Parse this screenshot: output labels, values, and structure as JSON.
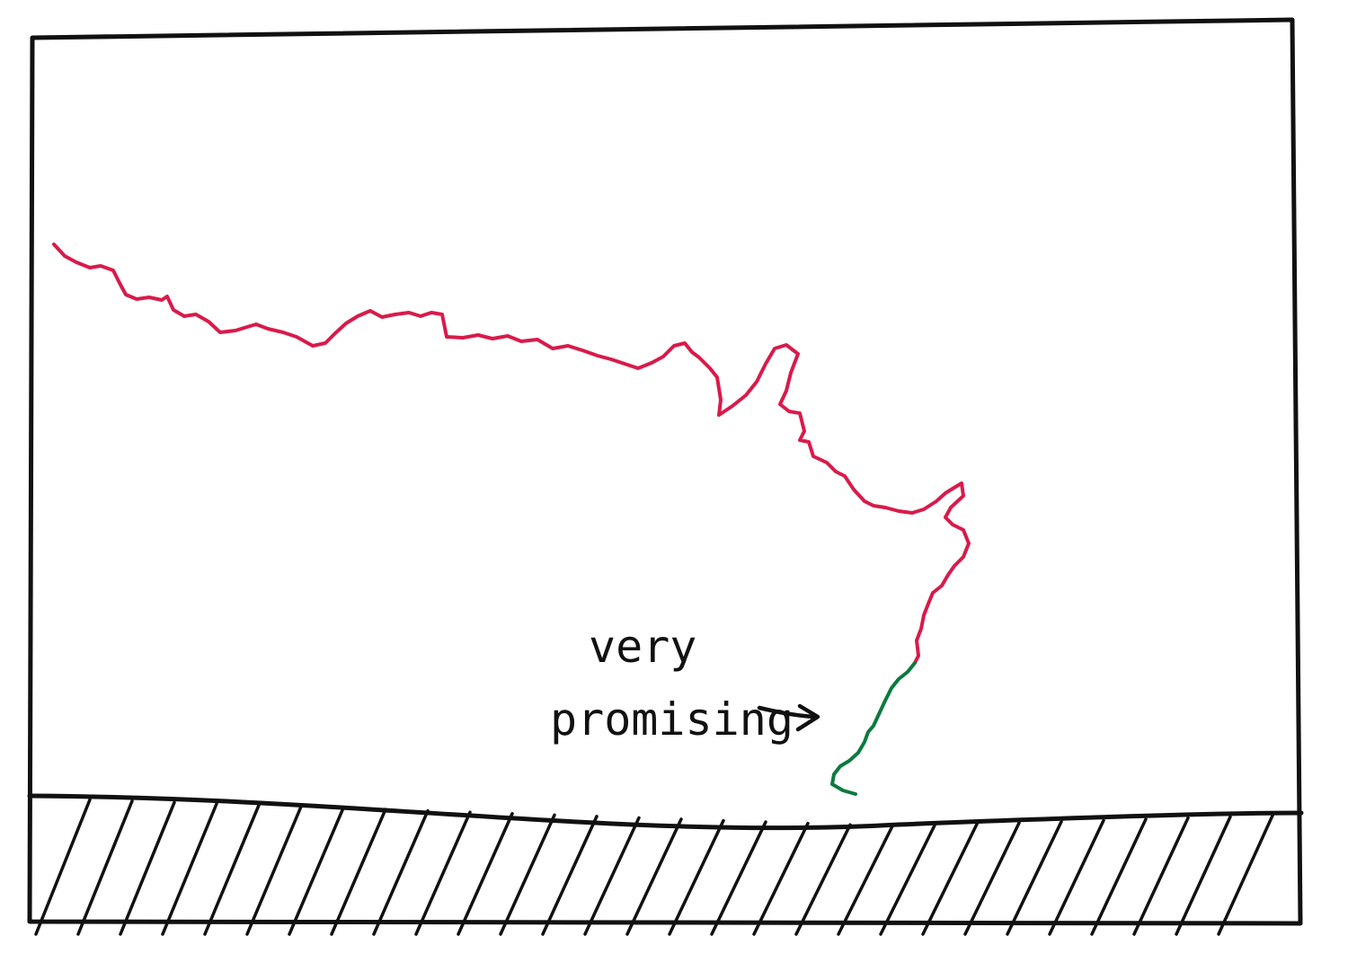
{
  "annotation": {
    "line1": "very",
    "line2": "promising"
  },
  "colors": {
    "ink": "#111111",
    "trajectory": "#d81b4a",
    "promising_segment": "#0b7a3e",
    "background": "#ffffff"
  },
  "icons": {
    "arrow": "arrow-right-icon"
  }
}
